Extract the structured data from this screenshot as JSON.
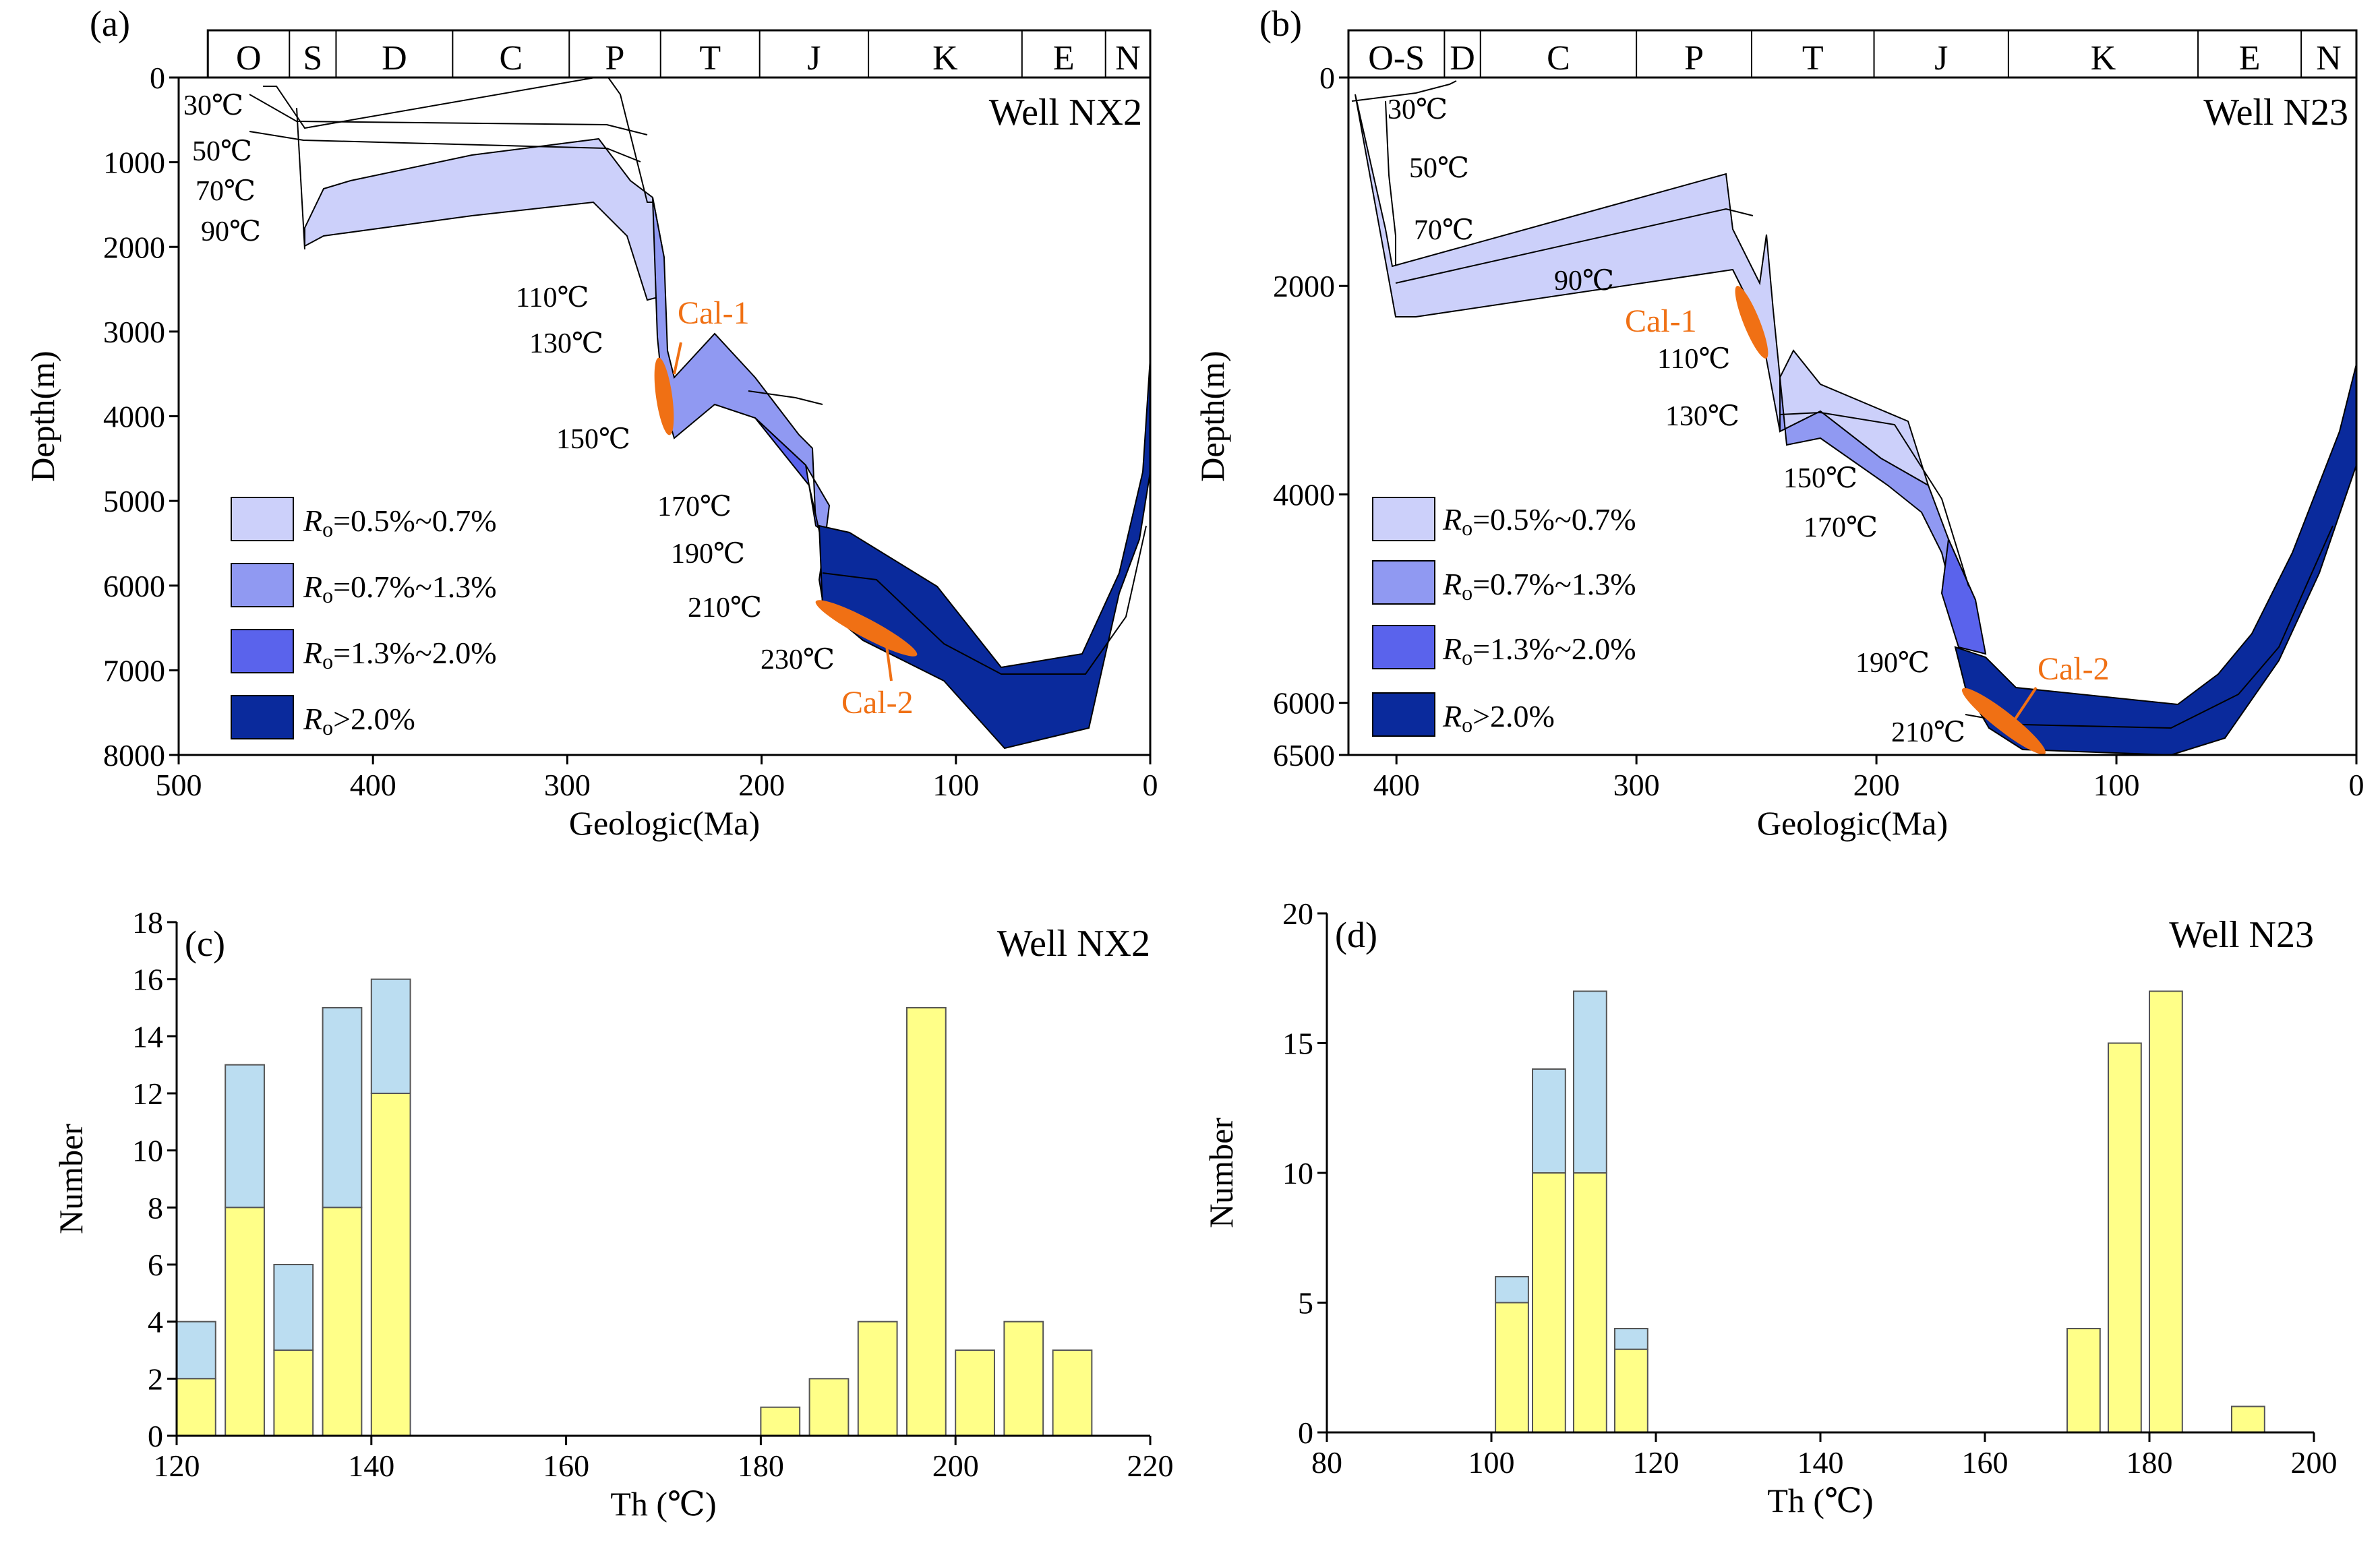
{
  "colors": {
    "ro_low": "#CCD0FA",
    "ro_mid": "#9099F2",
    "ro_high": "#5A63EC",
    "ro_over": "#0A2A9C",
    "calcite": "#F07014",
    "bar_yellow": "#FFFF88",
    "bar_blue": "#BBDDF1",
    "gray_fill": "#C8C8C8"
  },
  "chart_data": [
    {
      "id": "a",
      "type": "burial-history",
      "panel_label": "(a)",
      "title": "Well NX2",
      "xlabel": "Geologic(Ma)",
      "ylabel": "Depth(m)",
      "xlim": [
        500,
        0
      ],
      "ylim": [
        0,
        8000
      ],
      "xticks": [
        500,
        400,
        300,
        200,
        100,
        0
      ],
      "yticks": [
        0,
        1000,
        2000,
        3000,
        4000,
        5000,
        6000,
        7000,
        8000
      ],
      "periods": [
        {
          "label": "O",
          "start": 485,
          "end": 443
        },
        {
          "label": "S",
          "start": 443,
          "end": 419
        },
        {
          "label": "D",
          "start": 419,
          "end": 359
        },
        {
          "label": "C",
          "start": 359,
          "end": 299
        },
        {
          "label": "P",
          "start": 299,
          "end": 252
        },
        {
          "label": "T",
          "start": 252,
          "end": 201
        },
        {
          "label": "J",
          "start": 201,
          "end": 145
        },
        {
          "label": "K",
          "start": 145,
          "end": 66
        },
        {
          "label": "E",
          "start": 66,
          "end": 23
        },
        {
          "label": "N",
          "start": 23,
          "end": 0
        }
      ],
      "isotherm_labels": [
        "30℃",
        "50℃",
        "70℃",
        "90℃",
        "110℃",
        "130℃",
        "150℃",
        "170℃",
        "190℃",
        "210℃",
        "230℃"
      ],
      "legend": [
        {
          "sub": "o",
          "text": "=0.5%~0.7%",
          "color": "ro_low"
        },
        {
          "sub": "o",
          "text": "=0.7%~1.3%",
          "color": "ro_mid"
        },
        {
          "sub": "o",
          "text": "=1.3%~2.0%",
          "color": "ro_high"
        },
        {
          "sub": "o",
          "text": ">2.0%",
          "color": "ro_over"
        }
      ],
      "legend_main": "R",
      "calcite": [
        {
          "label": "Cal-1",
          "age": [
            262,
            255
          ],
          "depth": [
            3200,
            4100
          ]
        },
        {
          "label": "Cal-2",
          "age": [
            175,
            130
          ],
          "depth": [
            6000,
            6700
          ]
        }
      ]
    },
    {
      "id": "b",
      "type": "burial-history",
      "panel_label": "(b)",
      "title": "Well N23",
      "xlabel": "Geologic(Ma)",
      "ylabel": "Depth(m)",
      "xlim": [
        420,
        0
      ],
      "ylim": [
        0,
        6500
      ],
      "xticks": [
        400,
        300,
        200,
        100,
        0
      ],
      "yticks": [
        0,
        2000,
        4000,
        6000,
        6500
      ],
      "periods": [
        {
          "label": "O-S",
          "start": 420,
          "end": 380
        },
        {
          "label": "D",
          "start": 380,
          "end": 365
        },
        {
          "label": "C",
          "start": 365,
          "end": 300
        },
        {
          "label": "P",
          "start": 300,
          "end": 252
        },
        {
          "label": "T",
          "start": 252,
          "end": 201
        },
        {
          "label": "J",
          "start": 201,
          "end": 145
        },
        {
          "label": "K",
          "start": 145,
          "end": 66
        },
        {
          "label": "E",
          "start": 66,
          "end": 23
        },
        {
          "label": "N",
          "start": 23,
          "end": 0
        }
      ],
      "isotherm_labels": [
        "30℃",
        "50℃",
        "70℃",
        "90℃",
        "110℃",
        "130℃",
        "150℃",
        "170℃",
        "190℃",
        "210℃"
      ],
      "legend": [
        {
          "sub": "o",
          "text": "=0.5%~0.7%",
          "color": "ro_low"
        },
        {
          "sub": "o",
          "text": "=0.7%~1.3%",
          "color": "ro_mid"
        },
        {
          "sub": "o",
          "text": "=1.3%~2.0%",
          "color": "ro_high"
        },
        {
          "sub": "o",
          "text": ">2.0%",
          "color": "ro_over"
        }
      ],
      "legend_main": "R",
      "calcite": [
        {
          "label": "Cal-1",
          "age": [
            264,
            252
          ],
          "depth": [
            2000,
            2700
          ]
        },
        {
          "label": "Cal-2",
          "age": [
            165,
            140
          ],
          "depth": [
            5900,
            6450
          ]
        }
      ]
    },
    {
      "id": "c",
      "type": "bar",
      "stacked": true,
      "panel_label": "(c)",
      "title": "Well NX2",
      "xlabel": "Th (℃)",
      "ylabel": "Number",
      "xlim": [
        120,
        220
      ],
      "ylim": [
        0,
        18
      ],
      "xticks": [
        120,
        140,
        160,
        180,
        200,
        220
      ],
      "yticks": [
        0,
        2,
        4,
        6,
        8,
        10,
        12,
        14,
        16,
        18
      ],
      "bin_width": 4,
      "bins": [
        120,
        125,
        130,
        135,
        140,
        180,
        185,
        190,
        195,
        200,
        205,
        210
      ],
      "series": [
        {
          "name": "yellow",
          "values": [
            2,
            8,
            3,
            8,
            12,
            1,
            2,
            4,
            15,
            3,
            4,
            3
          ]
        },
        {
          "name": "blue",
          "values": [
            2,
            5,
            3,
            7,
            4,
            0,
            0,
            0,
            0,
            0,
            0,
            0
          ]
        }
      ]
    },
    {
      "id": "d",
      "type": "bar",
      "stacked": true,
      "panel_label": "(d)",
      "title": "Well N23",
      "xlabel": "Th (℃)",
      "ylabel": "Number",
      "xlim": [
        80,
        200
      ],
      "ylim": [
        0,
        20
      ],
      "xticks": [
        80,
        100,
        120,
        140,
        160,
        180,
        200
      ],
      "yticks": [
        0,
        5,
        10,
        15,
        20
      ],
      "bin_width": 4,
      "bins": [
        100.5,
        105,
        110,
        115,
        170,
        175,
        180,
        190
      ],
      "series": [
        {
          "name": "yellow",
          "values": [
            5,
            10,
            10,
            3.2,
            4,
            15,
            17,
            1
          ]
        },
        {
          "name": "blue",
          "values": [
            1,
            4,
            7,
            0.8,
            0,
            0,
            0,
            0
          ]
        }
      ]
    }
  ]
}
